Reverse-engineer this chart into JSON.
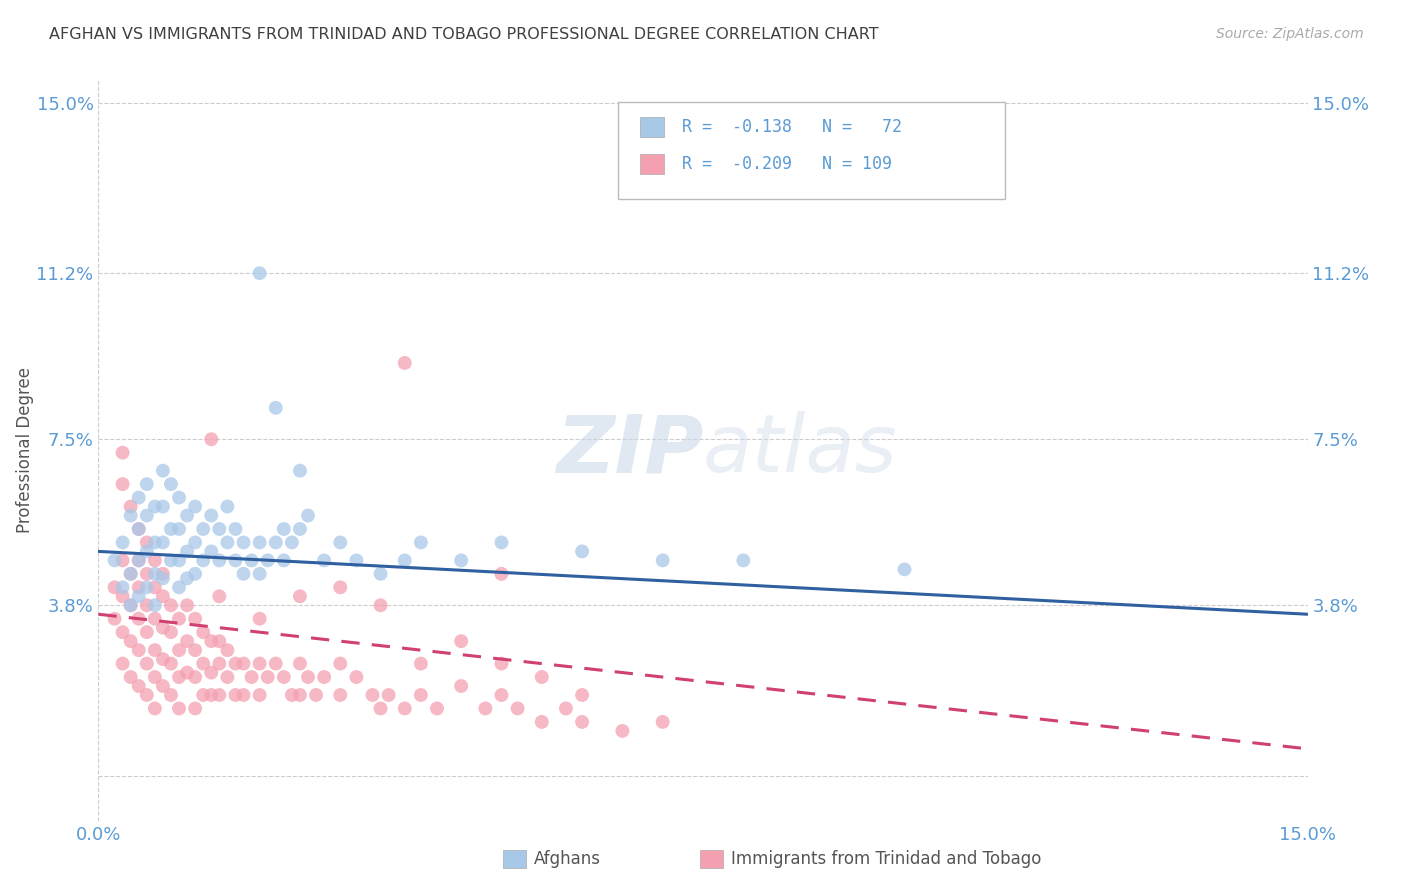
{
  "title": "AFGHAN VS IMMIGRANTS FROM TRINIDAD AND TOBAGO PROFESSIONAL DEGREE CORRELATION CHART",
  "source": "Source: ZipAtlas.com",
  "ylabel": "Professional Degree",
  "watermark": "ZIPatlas",
  "x_min": 0.0,
  "x_max": 0.15,
  "y_min": -0.01,
  "y_max": 0.155,
  "y_ticks": [
    0.0,
    0.038,
    0.075,
    0.112,
    0.15
  ],
  "y_tick_labels": [
    "",
    "3.8%",
    "7.5%",
    "11.2%",
    "15.0%"
  ],
  "blue_color": "#a8c8e8",
  "pink_color": "#f4a0b0",
  "blue_line_color": "#3060a0",
  "pink_line_color": "#d04070",
  "pink_line_style": "--",
  "grid_color": "#cccccc",
  "title_color": "#404040",
  "axis_label_color": "#5b9bd5",
  "blue_scatter": [
    [
      0.002,
      0.048
    ],
    [
      0.003,
      0.052
    ],
    [
      0.003,
      0.042
    ],
    [
      0.004,
      0.058
    ],
    [
      0.004,
      0.045
    ],
    [
      0.004,
      0.038
    ],
    [
      0.005,
      0.062
    ],
    [
      0.005,
      0.055
    ],
    [
      0.005,
      0.048
    ],
    [
      0.005,
      0.04
    ],
    [
      0.006,
      0.065
    ],
    [
      0.006,
      0.058
    ],
    [
      0.006,
      0.05
    ],
    [
      0.006,
      0.042
    ],
    [
      0.007,
      0.06
    ],
    [
      0.007,
      0.052
    ],
    [
      0.007,
      0.045
    ],
    [
      0.007,
      0.038
    ],
    [
      0.008,
      0.068
    ],
    [
      0.008,
      0.06
    ],
    [
      0.008,
      0.052
    ],
    [
      0.008,
      0.044
    ],
    [
      0.009,
      0.065
    ],
    [
      0.009,
      0.055
    ],
    [
      0.009,
      0.048
    ],
    [
      0.01,
      0.062
    ],
    [
      0.01,
      0.055
    ],
    [
      0.01,
      0.048
    ],
    [
      0.01,
      0.042
    ],
    [
      0.011,
      0.058
    ],
    [
      0.011,
      0.05
    ],
    [
      0.011,
      0.044
    ],
    [
      0.012,
      0.06
    ],
    [
      0.012,
      0.052
    ],
    [
      0.012,
      0.045
    ],
    [
      0.013,
      0.055
    ],
    [
      0.013,
      0.048
    ],
    [
      0.014,
      0.058
    ],
    [
      0.014,
      0.05
    ],
    [
      0.015,
      0.055
    ],
    [
      0.015,
      0.048
    ],
    [
      0.016,
      0.06
    ],
    [
      0.016,
      0.052
    ],
    [
      0.017,
      0.055
    ],
    [
      0.017,
      0.048
    ],
    [
      0.018,
      0.052
    ],
    [
      0.018,
      0.045
    ],
    [
      0.019,
      0.048
    ],
    [
      0.02,
      0.052
    ],
    [
      0.02,
      0.045
    ],
    [
      0.021,
      0.048
    ],
    [
      0.022,
      0.052
    ],
    [
      0.023,
      0.055
    ],
    [
      0.023,
      0.048
    ],
    [
      0.024,
      0.052
    ],
    [
      0.025,
      0.068
    ],
    [
      0.025,
      0.055
    ],
    [
      0.026,
      0.058
    ],
    [
      0.028,
      0.048
    ],
    [
      0.03,
      0.052
    ],
    [
      0.032,
      0.048
    ],
    [
      0.035,
      0.045
    ],
    [
      0.038,
      0.048
    ],
    [
      0.04,
      0.052
    ],
    [
      0.045,
      0.048
    ],
    [
      0.05,
      0.052
    ],
    [
      0.06,
      0.05
    ],
    [
      0.07,
      0.048
    ],
    [
      0.08,
      0.048
    ],
    [
      0.1,
      0.046
    ],
    [
      0.02,
      0.112
    ],
    [
      0.022,
      0.082
    ]
  ],
  "pink_scatter": [
    [
      0.002,
      0.042
    ],
    [
      0.002,
      0.035
    ],
    [
      0.003,
      0.048
    ],
    [
      0.003,
      0.04
    ],
    [
      0.003,
      0.032
    ],
    [
      0.003,
      0.025
    ],
    [
      0.004,
      0.045
    ],
    [
      0.004,
      0.038
    ],
    [
      0.004,
      0.03
    ],
    [
      0.004,
      0.022
    ],
    [
      0.005,
      0.048
    ],
    [
      0.005,
      0.042
    ],
    [
      0.005,
      0.035
    ],
    [
      0.005,
      0.028
    ],
    [
      0.005,
      0.02
    ],
    [
      0.006,
      0.045
    ],
    [
      0.006,
      0.038
    ],
    [
      0.006,
      0.032
    ],
    [
      0.006,
      0.025
    ],
    [
      0.006,
      0.018
    ],
    [
      0.007,
      0.042
    ],
    [
      0.007,
      0.035
    ],
    [
      0.007,
      0.028
    ],
    [
      0.007,
      0.022
    ],
    [
      0.007,
      0.015
    ],
    [
      0.008,
      0.04
    ],
    [
      0.008,
      0.033
    ],
    [
      0.008,
      0.026
    ],
    [
      0.008,
      0.02
    ],
    [
      0.009,
      0.038
    ],
    [
      0.009,
      0.032
    ],
    [
      0.009,
      0.025
    ],
    [
      0.009,
      0.018
    ],
    [
      0.01,
      0.035
    ],
    [
      0.01,
      0.028
    ],
    [
      0.01,
      0.022
    ],
    [
      0.01,
      0.015
    ],
    [
      0.011,
      0.038
    ],
    [
      0.011,
      0.03
    ],
    [
      0.011,
      0.023
    ],
    [
      0.012,
      0.035
    ],
    [
      0.012,
      0.028
    ],
    [
      0.012,
      0.022
    ],
    [
      0.012,
      0.015
    ],
    [
      0.013,
      0.032
    ],
    [
      0.013,
      0.025
    ],
    [
      0.013,
      0.018
    ],
    [
      0.014,
      0.03
    ],
    [
      0.014,
      0.023
    ],
    [
      0.014,
      0.018
    ],
    [
      0.015,
      0.03
    ],
    [
      0.015,
      0.025
    ],
    [
      0.015,
      0.018
    ],
    [
      0.016,
      0.028
    ],
    [
      0.016,
      0.022
    ],
    [
      0.017,
      0.025
    ],
    [
      0.017,
      0.018
    ],
    [
      0.018,
      0.025
    ],
    [
      0.018,
      0.018
    ],
    [
      0.019,
      0.022
    ],
    [
      0.02,
      0.025
    ],
    [
      0.02,
      0.018
    ],
    [
      0.021,
      0.022
    ],
    [
      0.022,
      0.025
    ],
    [
      0.023,
      0.022
    ],
    [
      0.024,
      0.018
    ],
    [
      0.025,
      0.025
    ],
    [
      0.025,
      0.018
    ],
    [
      0.026,
      0.022
    ],
    [
      0.027,
      0.018
    ],
    [
      0.028,
      0.022
    ],
    [
      0.03,
      0.018
    ],
    [
      0.03,
      0.025
    ],
    [
      0.032,
      0.022
    ],
    [
      0.034,
      0.018
    ],
    [
      0.035,
      0.015
    ],
    [
      0.036,
      0.018
    ],
    [
      0.038,
      0.015
    ],
    [
      0.04,
      0.018
    ],
    [
      0.04,
      0.025
    ],
    [
      0.042,
      0.015
    ],
    [
      0.045,
      0.02
    ],
    [
      0.048,
      0.015
    ],
    [
      0.05,
      0.025
    ],
    [
      0.05,
      0.018
    ],
    [
      0.052,
      0.015
    ],
    [
      0.055,
      0.012
    ],
    [
      0.058,
      0.015
    ],
    [
      0.06,
      0.012
    ],
    [
      0.065,
      0.01
    ],
    [
      0.038,
      0.092
    ],
    [
      0.014,
      0.075
    ],
    [
      0.003,
      0.072
    ],
    [
      0.003,
      0.065
    ],
    [
      0.004,
      0.06
    ],
    [
      0.005,
      0.055
    ],
    [
      0.006,
      0.052
    ],
    [
      0.007,
      0.048
    ],
    [
      0.008,
      0.045
    ],
    [
      0.025,
      0.04
    ],
    [
      0.03,
      0.042
    ],
    [
      0.035,
      0.038
    ],
    [
      0.045,
      0.03
    ],
    [
      0.05,
      0.045
    ],
    [
      0.055,
      0.022
    ],
    [
      0.06,
      0.018
    ],
    [
      0.07,
      0.012
    ],
    [
      0.02,
      0.035
    ],
    [
      0.015,
      0.04
    ]
  ],
  "blue_trend": [
    0.0,
    0.15,
    0.05,
    0.036
  ],
  "pink_trend": [
    0.0,
    0.15,
    0.036,
    0.006
  ]
}
